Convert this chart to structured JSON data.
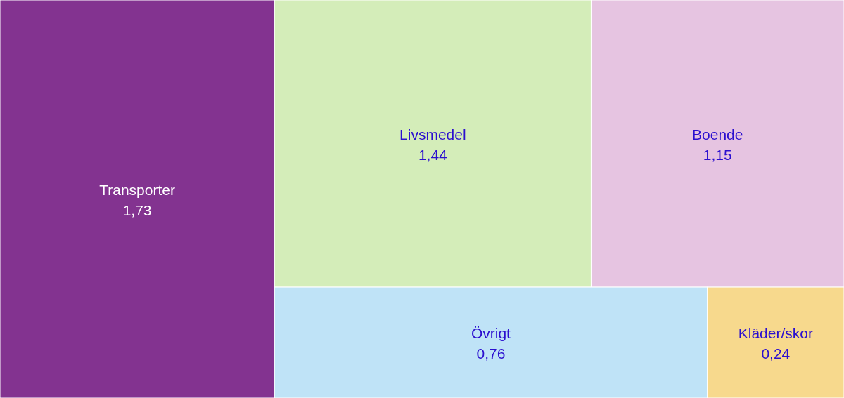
{
  "chart_data": {
    "type": "other",
    "categories": [
      "Transporter",
      "Livsmedel",
      "Boende",
      "Övrigt",
      "Kläder/skor"
    ],
    "values": [
      1.73,
      1.44,
      1.15,
      0.76,
      0.24
    ],
    "value_labels": [
      "1,73",
      "1,44",
      "1,15",
      "0,76",
      "0,24"
    ],
    "colors": [
      "#833390",
      "#d4edb9",
      "#e6c4e1",
      "#bfe3f7",
      "#f7d98d"
    ]
  }
}
